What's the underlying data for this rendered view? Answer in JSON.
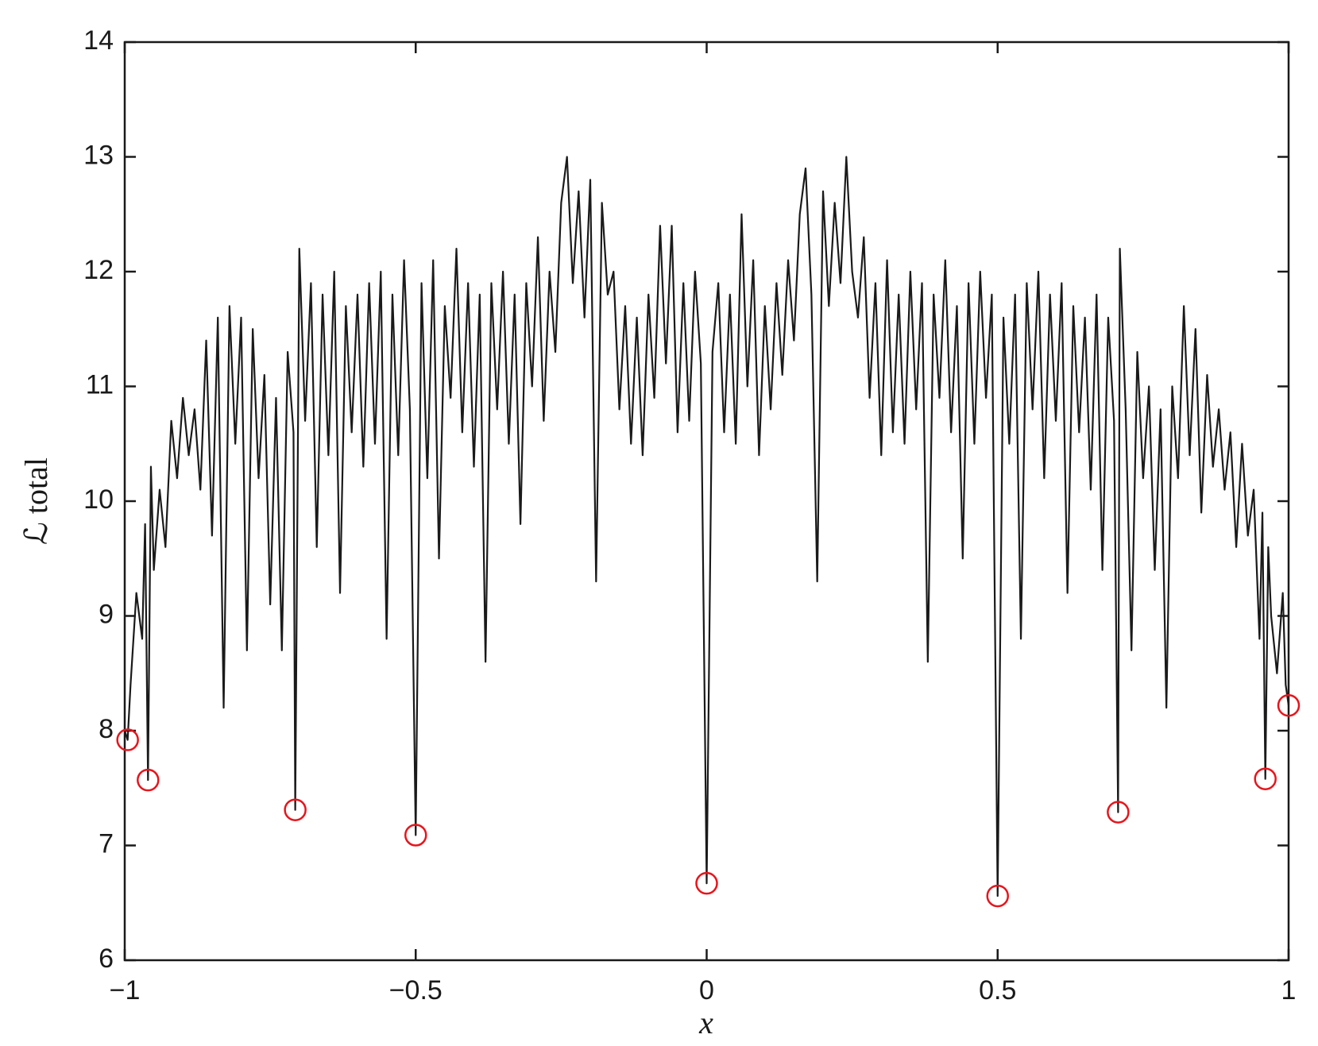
{
  "chart_data": {
    "type": "line",
    "xlabel": "x",
    "ylabel": "ℒ total",
    "xlim": [
      -1,
      1
    ],
    "ylim": [
      6,
      14
    ],
    "xticks": [
      {
        "value": -1,
        "label": "−1"
      },
      {
        "value": -0.5,
        "label": "−0.5"
      },
      0,
      0.5,
      1
    ],
    "yticks": [
      6,
      7,
      8,
      9,
      10,
      11,
      12,
      13,
      14
    ],
    "series": [
      {
        "color": "#1a1a1a",
        "x": [
          -1,
          -0.995,
          -0.99,
          -0.98,
          -0.97,
          -0.965,
          -0.96,
          -0.955,
          -0.95,
          -0.94,
          -0.93,
          -0.92,
          -0.91,
          -0.9,
          -0.89,
          -0.88,
          -0.87,
          -0.86,
          -0.85,
          -0.84,
          -0.83,
          -0.82,
          -0.81,
          -0.8,
          -0.79,
          -0.78,
          -0.77,
          -0.76,
          -0.75,
          -0.74,
          -0.73,
          -0.72,
          -0.71,
          -0.707,
          -0.7,
          -0.69,
          -0.68,
          -0.67,
          -0.66,
          -0.65,
          -0.64,
          -0.63,
          -0.62,
          -0.61,
          -0.6,
          -0.59,
          -0.58,
          -0.57,
          -0.56,
          -0.55,
          -0.54,
          -0.53,
          -0.52,
          -0.51,
          -0.5,
          -0.49,
          -0.48,
          -0.47,
          -0.46,
          -0.45,
          -0.44,
          -0.43,
          -0.42,
          -0.41,
          -0.4,
          -0.39,
          -0.38,
          -0.37,
          -0.36,
          -0.35,
          -0.34,
          -0.33,
          -0.32,
          -0.31,
          -0.3,
          -0.29,
          -0.28,
          -0.27,
          -0.26,
          -0.25,
          -0.24,
          -0.23,
          -0.22,
          -0.21,
          -0.2,
          -0.19,
          -0.18,
          -0.17,
          -0.16,
          -0.15,
          -0.14,
          -0.13,
          -0.12,
          -0.11,
          -0.1,
          -0.09,
          -0.08,
          -0.07,
          -0.06,
          -0.05,
          -0.04,
          -0.03,
          -0.02,
          -0.01,
          0,
          0.01,
          0.02,
          0.03,
          0.04,
          0.05,
          0.06,
          0.07,
          0.08,
          0.09,
          0.1,
          0.11,
          0.12,
          0.13,
          0.14,
          0.15,
          0.16,
          0.17,
          0.18,
          0.19,
          0.2,
          0.21,
          0.22,
          0.23,
          0.24,
          0.25,
          0.26,
          0.27,
          0.28,
          0.29,
          0.3,
          0.31,
          0.32,
          0.33,
          0.34,
          0.35,
          0.36,
          0.37,
          0.38,
          0.39,
          0.4,
          0.41,
          0.42,
          0.43,
          0.44,
          0.45,
          0.46,
          0.47,
          0.48,
          0.49,
          0.5,
          0.51,
          0.52,
          0.53,
          0.54,
          0.55,
          0.56,
          0.57,
          0.58,
          0.59,
          0.6,
          0.61,
          0.62,
          0.63,
          0.64,
          0.65,
          0.66,
          0.67,
          0.68,
          0.69,
          0.7,
          0.707,
          0.71,
          0.72,
          0.73,
          0.74,
          0.75,
          0.76,
          0.77,
          0.78,
          0.79,
          0.8,
          0.81,
          0.82,
          0.83,
          0.84,
          0.85,
          0.86,
          0.87,
          0.88,
          0.89,
          0.9,
          0.91,
          0.92,
          0.93,
          0.94,
          0.95,
          0.955,
          0.96,
          0.965,
          0.97,
          0.98,
          0.99,
          0.995,
          1
        ],
        "values": [
          8.0,
          7.92,
          8.4,
          9.2,
          8.8,
          9.8,
          7.57,
          10.3,
          9.4,
          10.1,
          9.6,
          10.7,
          10.2,
          10.9,
          10.4,
          10.8,
          10.1,
          11.4,
          9.7,
          11.6,
          8.2,
          11.7,
          10.5,
          11.6,
          8.7,
          11.5,
          10.2,
          11.1,
          9.1,
          10.9,
          8.7,
          11.3,
          10.6,
          7.31,
          12.2,
          10.7,
          11.9,
          9.6,
          11.8,
          10.4,
          12.0,
          9.2,
          11.7,
          10.6,
          11.8,
          10.3,
          11.9,
          10.5,
          12.0,
          8.8,
          11.8,
          10.4,
          12.1,
          10.8,
          7.09,
          11.9,
          10.2,
          12.1,
          9.5,
          11.7,
          10.9,
          12.2,
          10.6,
          11.9,
          10.3,
          11.8,
          8.6,
          11.9,
          10.8,
          12.0,
          10.5,
          11.8,
          9.8,
          11.9,
          11.0,
          12.3,
          10.7,
          12.0,
          11.3,
          12.6,
          13.0,
          11.9,
          12.7,
          11.6,
          12.8,
          9.3,
          12.6,
          11.8,
          12.0,
          10.8,
          11.7,
          10.5,
          11.6,
          10.4,
          11.8,
          10.9,
          12.4,
          11.2,
          12.4,
          10.6,
          11.9,
          10.7,
          12.0,
          11.2,
          6.67,
          11.3,
          11.9,
          10.6,
          11.8,
          10.5,
          12.5,
          11.0,
          12.1,
          10.4,
          11.7,
          10.8,
          11.9,
          11.1,
          12.1,
          11.4,
          12.5,
          12.9,
          11.8,
          9.3,
          12.7,
          11.7,
          12.6,
          11.9,
          13.0,
          12.0,
          11.6,
          12.3,
          10.9,
          11.9,
          10.4,
          12.1,
          10.6,
          11.8,
          10.5,
          12.0,
          10.8,
          11.9,
          8.6,
          11.8,
          10.9,
          12.1,
          10.6,
          11.7,
          9.5,
          11.9,
          10.5,
          12.0,
          10.9,
          11.8,
          6.56,
          11.6,
          10.5,
          11.8,
          8.8,
          11.9,
          10.8,
          12.0,
          10.2,
          11.8,
          10.7,
          11.9,
          9.2,
          11.7,
          10.6,
          11.6,
          10.1,
          11.8,
          9.4,
          11.6,
          10.7,
          7.29,
          12.2,
          10.8,
          8.7,
          11.3,
          10.2,
          11.0,
          9.4,
          10.8,
          8.2,
          11.0,
          10.2,
          11.7,
          10.4,
          11.5,
          9.9,
          11.1,
          10.3,
          10.8,
          10.1,
          10.6,
          9.6,
          10.5,
          9.7,
          10.1,
          8.8,
          9.9,
          7.58,
          9.6,
          9.0,
          8.5,
          9.2,
          8.4,
          8.22
        ]
      },
      {
        "color": "#e8141b",
        "marker": "circle",
        "x": [
          -0.995,
          -0.96,
          -0.707,
          -0.5,
          0,
          0.5,
          0.707,
          0.96,
          1
        ],
        "values": [
          7.92,
          7.57,
          7.31,
          7.09,
          6.67,
          6.56,
          7.29,
          7.58,
          8.22
        ]
      }
    ]
  }
}
